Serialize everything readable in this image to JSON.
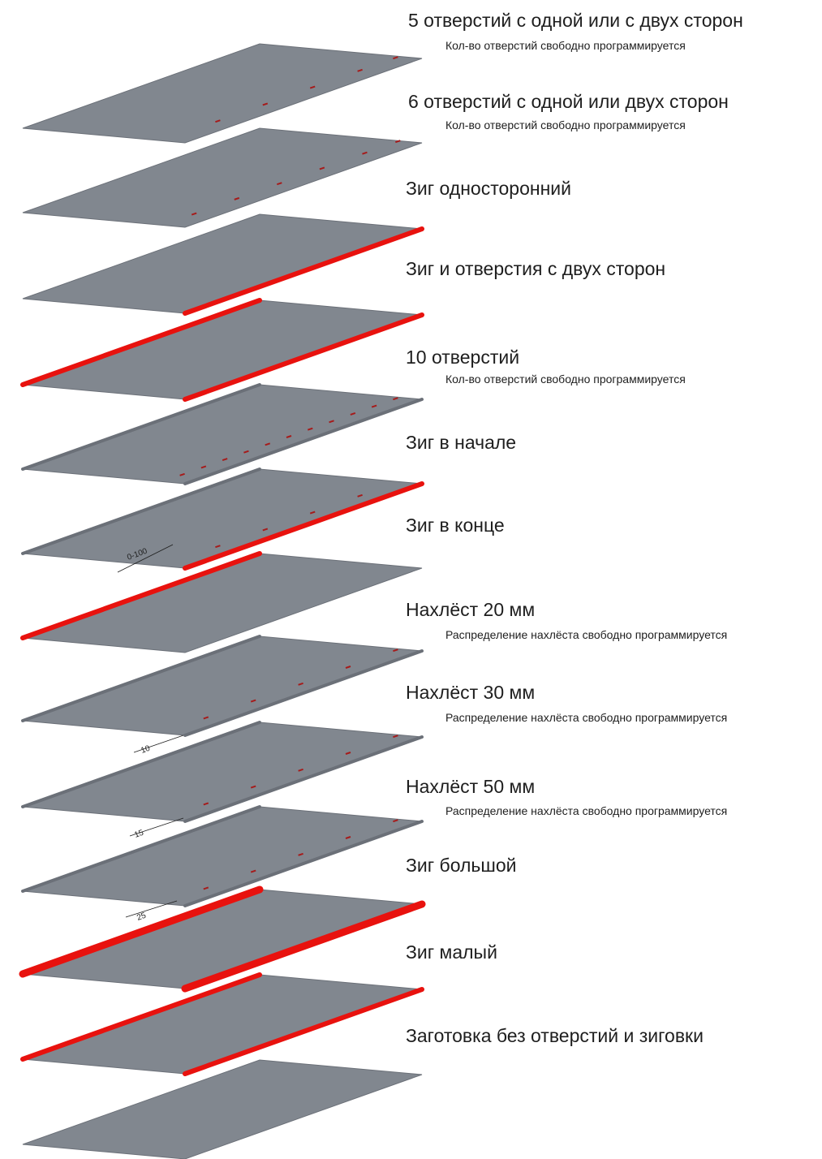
{
  "colors": {
    "sheet": "#81878f",
    "sheet_edge": "#6b7078",
    "bead": "#e8120e",
    "hole": "#a61b1b",
    "text": "#1e1e1e"
  },
  "variants": [
    {
      "title": "5 отверстий с одной или с двух сторон",
      "note": "Кол-во отверстий свободно программируется"
    },
    {
      "title": "6 отверстий с одной или двух сторон",
      "note": "Кол-во отверстий свободно программируется"
    },
    {
      "title": "Зиг односторонний",
      "note": ""
    },
    {
      "title": "Зиг и отверстия с двух сторон",
      "note": ""
    },
    {
      "title": "10 отверстий",
      "note": "Кол-во отверстий свободно программируется"
    },
    {
      "title": "Зиг в начале",
      "note": ""
    },
    {
      "title": "Зиг в конце",
      "note": ""
    },
    {
      "title": "Нахлёст 20 мм",
      "note": "Распределение нахлёста свободно программируется"
    },
    {
      "title": "Нахлёст 30 мм",
      "note": "Распределение нахлёста свободно программируется"
    },
    {
      "title": "Нахлёст 50 мм",
      "note": "Распределение нахлёста свободно программируется"
    },
    {
      "title": "Зиг большой",
      "note": ""
    },
    {
      "title": "Зиг малый",
      "note": ""
    },
    {
      "title": "Заготовка без отверстий и зиговки",
      "note": ""
    }
  ],
  "dimensions": {
    "zig_offset": "0-100",
    "overlap_20": "10",
    "overlap_30": "15",
    "overlap_50": "25"
  }
}
